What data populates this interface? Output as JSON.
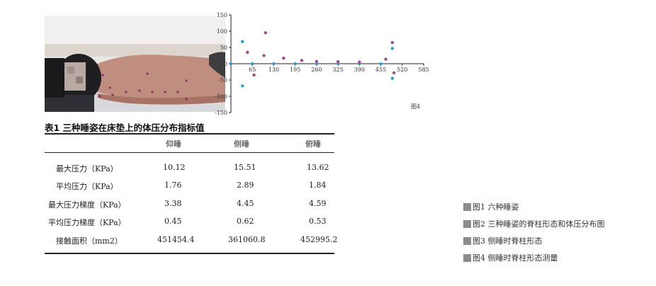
{
  "chart_data": {
    "type": "scatter",
    "title": "",
    "figure_label": "图4",
    "xlabel": "",
    "ylabel": "",
    "xlim": [
      0,
      585
    ],
    "ylim": [
      -150,
      150
    ],
    "x_ticks": [
      65,
      130,
      195,
      260,
      325,
      390,
      455,
      520,
      585
    ],
    "y_ticks": [
      150,
      100,
      50,
      0,
      -50,
      -100,
      -150
    ],
    "grid": false,
    "series": [
      {
        "color": "#2aa0d8",
        "points": [
          [
            0,
            0
          ],
          [
            35,
            68
          ],
          [
            35,
            -68
          ],
          [
            65,
            0
          ],
          [
            130,
            0
          ],
          [
            195,
            0
          ],
          [
            260,
            0
          ],
          [
            325,
            0
          ],
          [
            390,
            0
          ],
          [
            455,
            0
          ],
          [
            490,
            47
          ],
          [
            490,
            -45
          ]
        ]
      },
      {
        "color": "#a04a8c",
        "points": [
          [
            50,
            35
          ],
          [
            70,
            -35
          ],
          [
            100,
            25
          ],
          [
            105,
            95
          ],
          [
            160,
            17
          ],
          [
            215,
            10
          ],
          [
            260,
            7
          ],
          [
            325,
            6
          ],
          [
            390,
            5
          ],
          [
            470,
            14
          ],
          [
            490,
            65
          ],
          [
            495,
            -28
          ]
        ]
      }
    ]
  },
  "table": {
    "title": "表1 三种睡姿在床垫上的体压分布指标值",
    "columns": [
      "仰睡",
      "侧睡",
      "俯睡"
    ],
    "rows": [
      {
        "label": "最大压力（KPa）",
        "values": [
          "10.12",
          "15.51",
          "13.62"
        ]
      },
      {
        "label": "平均压力（KPa）",
        "values": [
          "1.76",
          "2.89",
          "1.84"
        ]
      },
      {
        "label": "最大压力梯度（KPa）",
        "values": [
          "3.38",
          "4.45",
          "4.59"
        ]
      },
      {
        "label": "平均压力梯度（KPa）",
        "values": [
          "0.45",
          "0.62",
          "0.53"
        ]
      },
      {
        "label": "接触面积（mm2）",
        "values": [
          "451454.4",
          "361060.8",
          "452995.2"
        ]
      }
    ]
  },
  "captions": [
    "图1 六种睡姿",
    "图2 三种睡姿的脊柱形态和体压分布图",
    "图3 侧睡时脊柱形态",
    "图4 侧睡时脊柱形态测量"
  ]
}
